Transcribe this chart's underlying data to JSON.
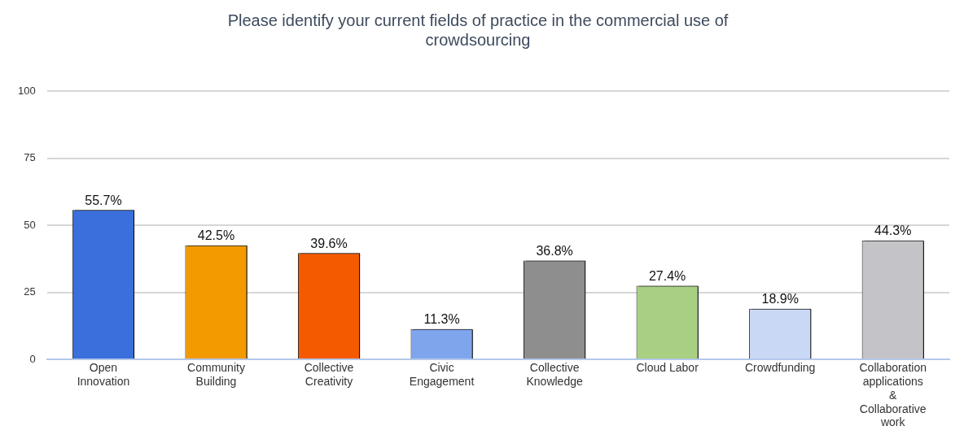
{
  "chart_data": {
    "type": "bar",
    "title": "Please identify your current fields of practice in the commercial use of crowdsourcing",
    "categories": [
      "Open Innovation",
      "Community Building",
      "Collective Creativity",
      "Civic Engagement",
      "Collective Knowledge",
      "Cloud Labor",
      "Crowdfunding",
      "Collaboration applications & Collaborative work"
    ],
    "values": [
      55.7,
      42.5,
      39.6,
      11.3,
      36.8,
      27.4,
      18.9,
      44.3
    ],
    "colors": [
      "#3a6fdc",
      "#f39a00",
      "#f45a00",
      "#7fa6ec",
      "#8e8e8e",
      "#a8d083",
      "#c9d9f5",
      "#c4c4c8"
    ],
    "value_labels": [
      "55.7%",
      "42.5%",
      "39.6%",
      "11.3%",
      "36.8%",
      "27.4%",
      "18.9%",
      "44.3%"
    ],
    "ylim": [
      0,
      100
    ],
    "yticks": [
      0,
      25,
      50,
      75,
      100
    ],
    "grid": "y",
    "legend": false
  }
}
